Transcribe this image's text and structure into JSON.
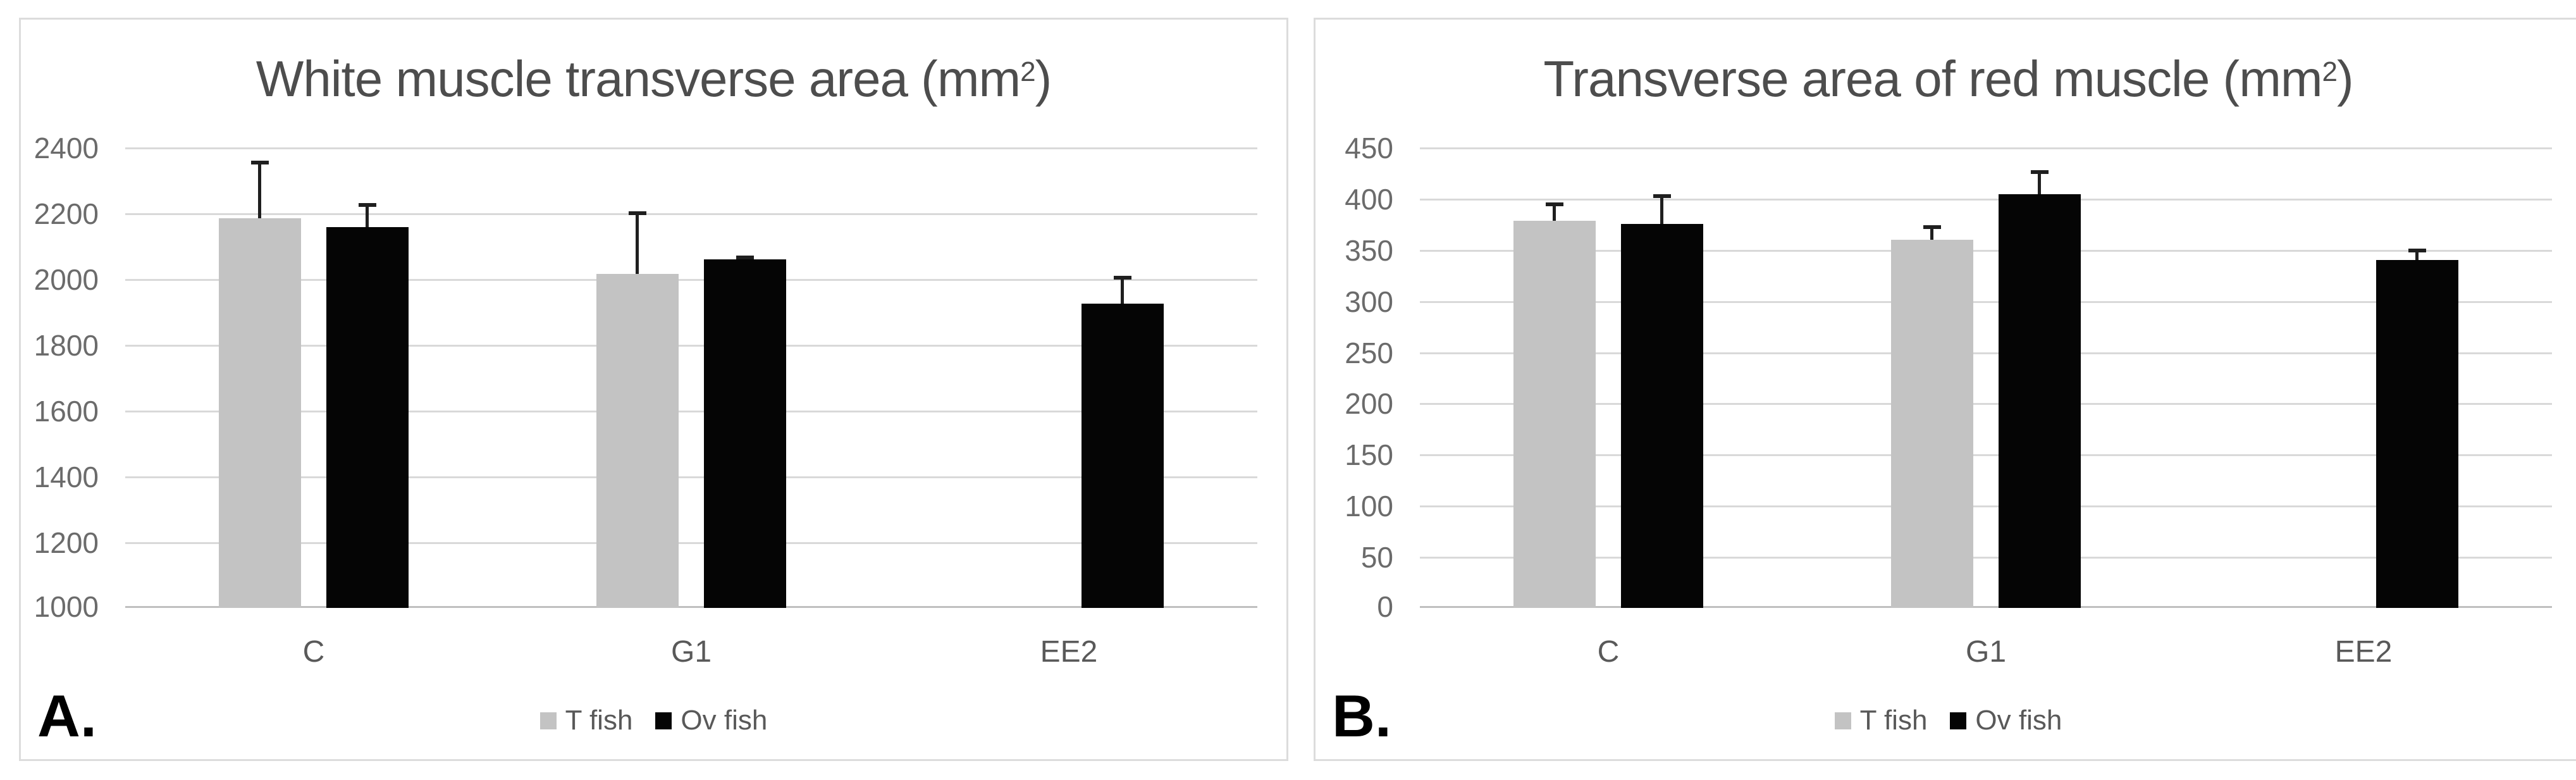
{
  "figure": {
    "background": "#ffffff",
    "panel_count": 2
  },
  "styles": {
    "bar_gray": "#c3c3c3",
    "bar_black": "#050505",
    "gridline_color": "#d9d9d9",
    "axis_line_color": "#bfbfbf",
    "error_bar_color": "#1f1f1f",
    "tick_label_color": "#6b6b6b",
    "title_color": "#4d4d4d",
    "category_label_color": "#595959",
    "legend_label_color": "#595959",
    "panel_border_color": "#dcdcdc",
    "panel_label_color": "#000000"
  },
  "chart_data": [
    {
      "type": "bar",
      "panel_label": "A.",
      "title": "White muscle transverse area (mm2)",
      "title_main": "White muscle transverse area (mm",
      "title_sup": "2",
      "title_suffix": ")",
      "categories": [
        "C",
        "G1",
        "EE2"
      ],
      "series": [
        {
          "name": "T fish",
          "color": "#c3c3c3",
          "values": [
            2185,
            2015,
            null
          ],
          "error_top": [
            2360,
            2205,
            null
          ]
        },
        {
          "name": "Ov fish",
          "color": "#050505",
          "values": [
            2158,
            2060,
            1925
          ],
          "error_top": [
            2230,
            2071,
            2010
          ]
        }
      ],
      "ylim": [
        1000,
        2400
      ],
      "ytick_step": 200,
      "ytick_labels": [
        "1000",
        "1200",
        "1400",
        "1600",
        "1800",
        "2000",
        "2200",
        "2400"
      ],
      "grid": true,
      "legend_position": "bottom-center",
      "error_bars": "plus-direction"
    },
    {
      "type": "bar",
      "panel_label": "B.",
      "title": "Transverse area of red muscle (mm2)",
      "title_main": "Transverse area of red muscle (mm",
      "title_sup": "2",
      "title_suffix": ")",
      "categories": [
        "C",
        "G1",
        "EE2"
      ],
      "series": [
        {
          "name": "T fish",
          "color": "#c3c3c3",
          "values": [
            378,
            360,
            null
          ],
          "error_top": [
            396,
            374,
            null
          ]
        },
        {
          "name": "Ov fish",
          "color": "#050505",
          "values": [
            375,
            404,
            340
          ],
          "error_top": [
            404,
            428,
            351
          ]
        }
      ],
      "ylim": [
        0,
        450
      ],
      "ytick_step": 50,
      "ytick_labels": [
        "0",
        "50",
        "100",
        "150",
        "200",
        "250",
        "300",
        "350",
        "400",
        "450"
      ],
      "grid": true,
      "legend_position": "bottom-center",
      "error_bars": "plus-direction"
    }
  ]
}
